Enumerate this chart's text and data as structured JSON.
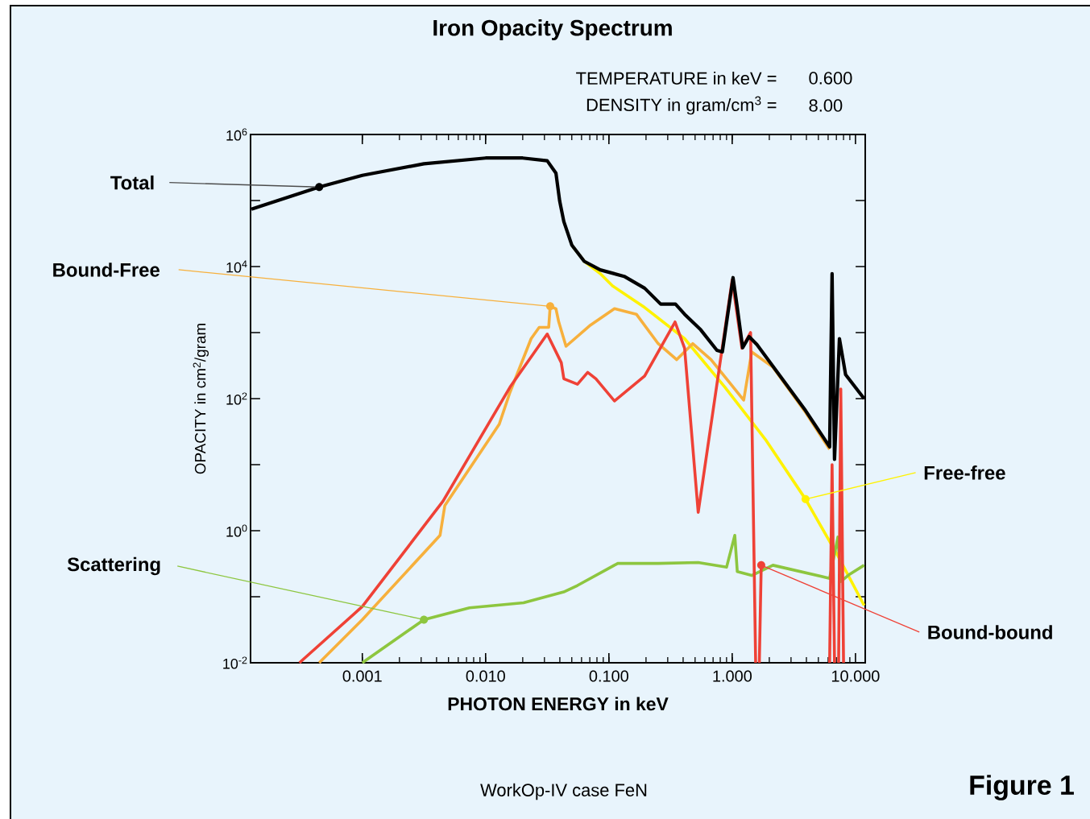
{
  "chart_data": {
    "type": "line",
    "title": "Iron Opacity Spectrum",
    "xlabel": "PHOTON ENERGY in keV",
    "ylabel": "OPACITY in cm$^{2}$/gram",
    "log": "xy",
    "xlim": [
      0.000124,
      12
    ],
    "ylim": [
      0.01,
      1000000
    ],
    "xticks": [
      {
        "value": 0.001,
        "label": "0.001"
      },
      {
        "value": 0.01,
        "label": "0.010"
      },
      {
        "value": 0.1,
        "label": "0.100"
      },
      {
        "value": 1,
        "label": "1.000"
      },
      {
        "value": 10,
        "label": "10.000"
      }
    ],
    "yticks": [
      {
        "value": 0.01,
        "label": "10$^{-2}$"
      },
      {
        "value": 0.1,
        "label": null
      },
      {
        "value": 1,
        "label": "10$^{0}$"
      },
      {
        "value": 10,
        "label": null
      },
      {
        "value": 100,
        "label": "10$^{2}$"
      },
      {
        "value": 1000,
        "label": null
      },
      {
        "value": 10000,
        "label": "10$^{4}$"
      },
      {
        "value": 100000,
        "label": null
      },
      {
        "value": 1000000,
        "label": "10$^{6}$"
      }
    ],
    "series": [
      {
        "name": "Free-free",
        "color": "#fff200",
        "x": [
          0.0501,
          0.0631,
          0.0851,
          0.107,
          0.195,
          0.411,
          0.871,
          1.862,
          3.936,
          7.18,
          11.75
        ],
        "values": [
          21000,
          12000,
          7800,
          5100,
          2400,
          810,
          150,
          24,
          3.0,
          0.42,
          0.074
        ]
      },
      {
        "name": "Bound-Free",
        "color": "#f7b03c",
        "x": [
          0.000447,
          0.001,
          0.00427,
          0.00467,
          0.0129,
          0.0158,
          0.0234,
          0.0272,
          0.0325,
          0.0334,
          0.0372,
          0.0392,
          0.0449,
          0.0709,
          0.111,
          0.167,
          0.251,
          0.355,
          0.478,
          0.674,
          1.24,
          1.44,
          2.138,
          3.936,
          6.17
        ],
        "values": [
          0.01,
          0.045,
          0.85,
          2.4,
          41,
          126,
          810,
          1200,
          1200,
          2500,
          2300,
          1450,
          620,
          1300,
          2300,
          1900,
          680,
          390,
          680,
          390,
          95,
          510,
          300,
          62,
          17
        ]
      },
      {
        "name": "Scattering",
        "color": "#8dc63f",
        "x": [
          0.001,
          0.00316,
          0.0074,
          0.0203,
          0.043,
          0.0556,
          0.118,
          0.251,
          0.53,
          0.9,
          1.05,
          1.1,
          1.44,
          2.14,
          6.17,
          7.2,
          7.6,
          9.0,
          11.75
        ],
        "values": [
          0.01,
          0.045,
          0.068,
          0.081,
          0.118,
          0.148,
          0.32,
          0.32,
          0.33,
          0.28,
          0.85,
          0.24,
          0.21,
          0.3,
          0.19,
          0.8,
          0.17,
          0.22,
          0.3
        ]
      },
      {
        "name": "Bound-bound",
        "color": "#ef4136",
        "x": [
          0.000309,
          0.001,
          0.00451,
          0.0158,
          0.0316,
          0.0411,
          0.0431,
          0.0556,
          0.0673,
          0.0785,
          0.111,
          0.195,
          0.344,
          0.411,
          0.53,
          1.0,
          1.2,
          1.41,
          1.55,
          1.6,
          1.66,
          1.72,
          2.0,
          6.17,
          6.46,
          6.76,
          7.0,
          7.3,
          7.6,
          8.0
        ],
        "values": [
          0.01,
          0.071,
          2.8,
          150,
          950,
          350,
          200,
          165,
          250,
          200,
          92,
          220,
          1450,
          580,
          1.9,
          6300,
          580,
          1000,
          0.01,
          null,
          0.01,
          0.3,
          null,
          0.01,
          10,
          0.01,
          null,
          0.01,
          140,
          0.01
        ]
      },
      {
        "name": "Total",
        "color": "#000000",
        "x": [
          0.000126,
          0.000447,
          0.001,
          0.00316,
          0.01,
          0.02,
          0.0316,
          0.0372,
          0.0399,
          0.0431,
          0.0501,
          0.0631,
          0.0851,
          0.133,
          0.195,
          0.263,
          0.347,
          0.411,
          0.556,
          0.752,
          0.832,
          1.016,
          1.096,
          1.216,
          1.371,
          1.585,
          2.138,
          3.936,
          6.17,
          6.46,
          6.76,
          7.41,
          8.32,
          11.75
        ],
        "values": [
          74000,
          160000,
          240000,
          360000,
          440000,
          440000,
          400000,
          260000,
          98000,
          48000,
          21000,
          12000,
          8900,
          7100,
          4700,
          2700,
          2700,
          1900,
          1100,
          540,
          510,
          6800,
          2500,
          590,
          870,
          660,
          310,
          66,
          18.6,
          7800,
          12,
          810,
          230,
          100
        ]
      }
    ],
    "annotations": [
      "TEMPERATURE in keV =",
      "0.600",
      "DENSITY in gram/cm$^{3}$ =",
      "8.00",
      "WorkOp-IV case FeN",
      "Figure 1"
    ]
  }
}
